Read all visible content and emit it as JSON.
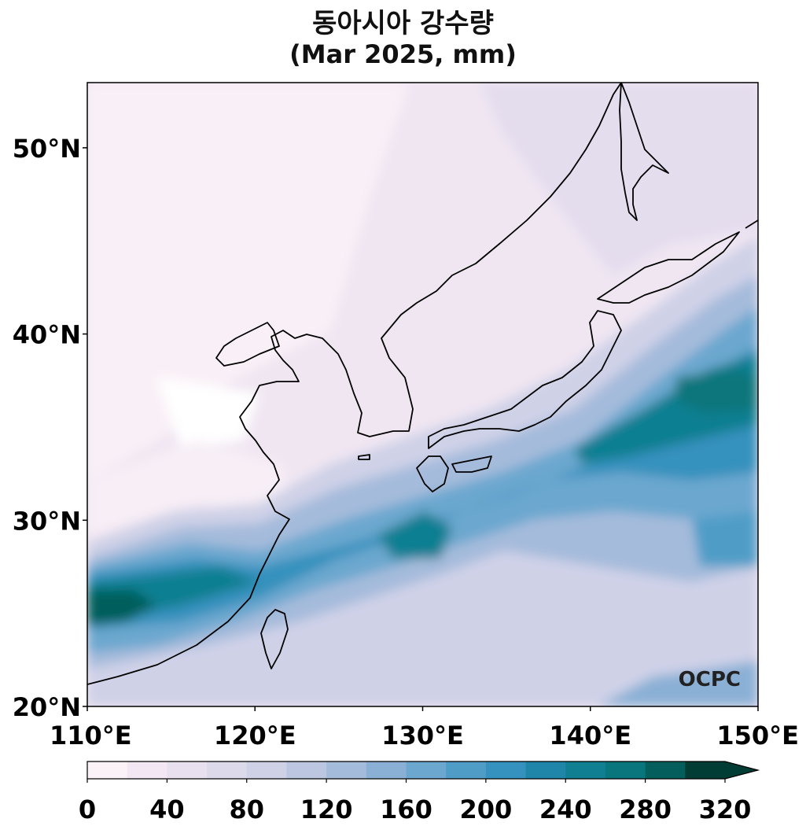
{
  "title": "동아시아 강수량",
  "subtitle": "(Mar 2025, mm)",
  "brand": "OCPC",
  "map": {
    "lon_range": [
      110,
      150
    ],
    "lat_range": [
      20,
      53.5
    ],
    "lon_ticks": [
      "110°E",
      "120°E",
      "130°E",
      "140°E",
      "150°E"
    ],
    "lat_ticks": [
      "20°N",
      "30°N",
      "40°N",
      "50°N"
    ],
    "lon_tick_values": [
      110,
      120,
      130,
      140,
      150
    ],
    "lat_tick_values": [
      20,
      30,
      40,
      50
    ]
  },
  "colorbar": {
    "min": 0,
    "max": 320,
    "step": 20,
    "extend": "max",
    "tick_labels": [
      "0",
      "40",
      "80",
      "120",
      "160",
      "200",
      "240",
      "280",
      "320"
    ],
    "colors": [
      "#fbf2f8",
      "#f2e7f2",
      "#e8e0ef",
      "#dcd9eb",
      "#cfd1e7",
      "#bcc6e0",
      "#a5bbdb",
      "#8bb0d5",
      "#6ca7cf",
      "#4f9dc7",
      "#3591bd",
      "#2086a9",
      "#117f92",
      "#08767c",
      "#045f5c",
      "#023d35"
    ]
  }
}
